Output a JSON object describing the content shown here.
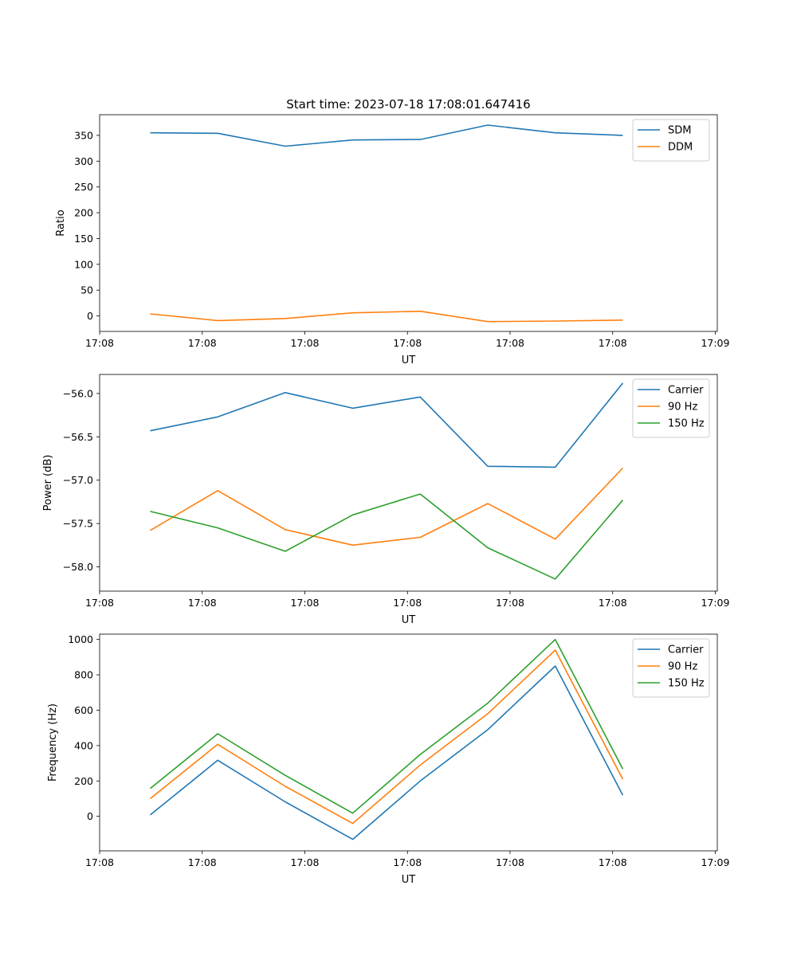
{
  "figure_title": "Start time: 2023-07-18 17:08:01.647416",
  "chart_data": [
    {
      "type": "line",
      "title": "Start time: 2023-07-18 17:08:01.647416",
      "xlabel": "UT",
      "ylabel": "Ratio",
      "x_index": [
        0,
        1,
        2,
        3,
        4,
        5,
        6,
        7
      ],
      "xlim": [
        -0.75,
        8.4
      ],
      "x_tick_positions": [
        -0.75,
        0.77,
        2.29,
        3.81,
        5.33,
        6.85,
        8.37
      ],
      "x_tick_labels": [
        "17:08",
        "17:08",
        "17:08",
        "17:08",
        "17:08",
        "17:08",
        "17:09"
      ],
      "ylim": [
        -30,
        390
      ],
      "y_ticks": [
        0,
        50,
        100,
        150,
        200,
        250,
        300,
        350
      ],
      "y_tick_labels": [
        "0",
        "50",
        "100",
        "150",
        "200",
        "250",
        "300",
        "350"
      ],
      "legend_position": "top-right",
      "series": [
        {
          "name": "SDM",
          "color": "#1f77b4",
          "values": [
            355,
            354,
            329,
            341,
            342,
            370,
            355,
            350
          ]
        },
        {
          "name": "DDM",
          "color": "#ff7f0e",
          "values": [
            4,
            -9,
            -5,
            6,
            9,
            -11,
            -10,
            -8
          ]
        }
      ]
    },
    {
      "type": "line",
      "title": "",
      "xlabel": "UT",
      "ylabel": "Power (dB)",
      "x_index": [
        0,
        1,
        2,
        3,
        4,
        5,
        6,
        7
      ],
      "xlim": [
        -0.75,
        8.4
      ],
      "x_tick_positions": [
        -0.75,
        0.77,
        2.29,
        3.81,
        5.33,
        6.85,
        8.37
      ],
      "x_tick_labels": [
        "17:08",
        "17:08",
        "17:08",
        "17:08",
        "17:08",
        "17:08",
        "17:09"
      ],
      "ylim": [
        -58.28,
        -55.78
      ],
      "y_ticks": [
        -58.0,
        -57.5,
        -57.0,
        -56.5,
        -56.0
      ],
      "y_tick_labels": [
        "−58.0",
        "−57.5",
        "−57.0",
        "−56.5",
        "−56.0"
      ],
      "legend_position": "top-right",
      "series": [
        {
          "name": "Carrier",
          "color": "#1f77b4",
          "values": [
            -56.43,
            -56.27,
            -55.99,
            -56.17,
            -56.04,
            -56.84,
            -56.85,
            -55.88
          ]
        },
        {
          "name": "90 Hz",
          "color": "#ff7f0e",
          "values": [
            -57.58,
            -57.12,
            -57.57,
            -57.75,
            -57.66,
            -57.27,
            -57.68,
            -56.86
          ]
        },
        {
          "name": "150 Hz",
          "color": "#2ca02c",
          "values": [
            -57.36,
            -57.55,
            -57.82,
            -57.4,
            -57.16,
            -57.78,
            -58.14,
            -57.23
          ]
        }
      ]
    },
    {
      "type": "line",
      "title": "",
      "xlabel": "UT",
      "ylabel": "Frequency (Hz)",
      "x_index": [
        0,
        1,
        2,
        3,
        4,
        5,
        6,
        7
      ],
      "xlim": [
        -0.75,
        8.4
      ],
      "x_tick_positions": [
        -0.75,
        0.77,
        2.29,
        3.81,
        5.33,
        6.85,
        8.37
      ],
      "x_tick_labels": [
        "17:08",
        "17:08",
        "17:08",
        "17:08",
        "17:08",
        "17:08",
        "17:09"
      ],
      "ylim": [
        -195,
        1030
      ],
      "y_ticks": [
        0,
        200,
        400,
        600,
        800,
        1000
      ],
      "y_tick_labels": [
        "0",
        "200",
        "400",
        "600",
        "800",
        "1000"
      ],
      "legend_position": "top-right",
      "series": [
        {
          "name": "Carrier",
          "color": "#1f77b4",
          "values": [
            8,
            317,
            82,
            -130,
            200,
            490,
            850,
            120
          ]
        },
        {
          "name": "90 Hz",
          "color": "#ff7f0e",
          "values": [
            100,
            407,
            170,
            -40,
            290,
            580,
            940,
            210
          ]
        },
        {
          "name": "150 Hz",
          "color": "#2ca02c",
          "values": [
            157,
            467,
            232,
            18,
            350,
            640,
            1000,
            268
          ]
        }
      ]
    }
  ]
}
